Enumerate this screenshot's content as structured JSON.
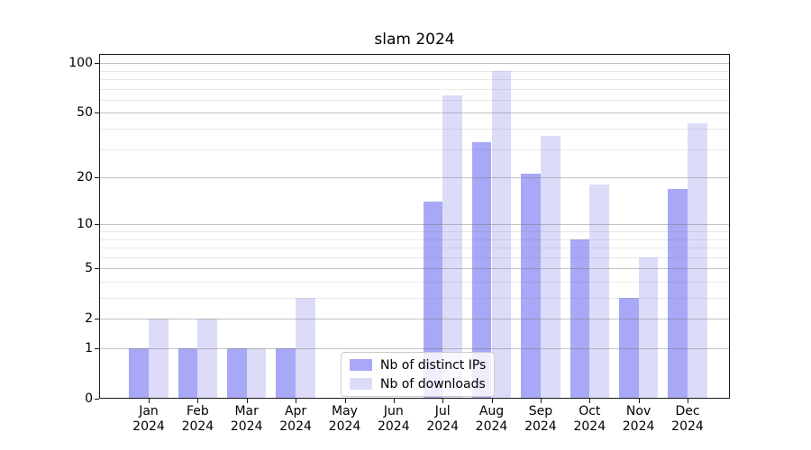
{
  "title": "slam 2024",
  "legend": {
    "items": [
      {
        "label": "Nb of distinct IPs",
        "color": "#a8a8f6"
      },
      {
        "label": "Nb of downloads",
        "color": "#dcdcf9"
      }
    ],
    "position": "lower center"
  },
  "x_axis": {
    "months": [
      "Jan",
      "Feb",
      "Mar",
      "Apr",
      "May",
      "Jun",
      "Jul",
      "Aug",
      "Sep",
      "Oct",
      "Nov",
      "Dec"
    ],
    "year": "2024"
  },
  "y_axis": {
    "major_ticks": [
      0,
      1,
      2,
      5,
      10,
      20,
      50,
      100
    ],
    "minor_ticks": [
      3,
      4,
      6,
      7,
      8,
      9,
      30,
      40,
      60,
      70,
      80,
      90
    ]
  },
  "chart_data": {
    "type": "bar",
    "title": "slam 2024",
    "categories": [
      "Jan 2024",
      "Feb 2024",
      "Mar 2024",
      "Apr 2024",
      "May 2024",
      "Jun 2024",
      "Jul 2024",
      "Aug 2024",
      "Sep 2024",
      "Oct 2024",
      "Nov 2024",
      "Dec 2024"
    ],
    "series": [
      {
        "name": "Nb of distinct IPs",
        "color": "#a8a8f6",
        "values": [
          1,
          1,
          1,
          1,
          0,
          0,
          14,
          33,
          21,
          8,
          3,
          17
        ]
      },
      {
        "name": "Nb of downloads",
        "color": "#dcdcf9",
        "values": [
          2,
          2,
          1,
          3,
          0,
          0,
          64,
          90,
          36,
          18,
          6,
          43
        ]
      }
    ],
    "xlabel": "",
    "ylabel": "",
    "y_scale": "log10(1 + value)",
    "y_ticks": [
      0,
      1,
      2,
      5,
      10,
      20,
      50,
      100
    ],
    "y_minor_ticks": [
      3,
      4,
      6,
      7,
      8,
      9,
      30,
      40,
      60,
      70,
      80,
      90
    ],
    "ylim": [
      0,
      111
    ],
    "grid": true,
    "legend_position": "lower center"
  }
}
